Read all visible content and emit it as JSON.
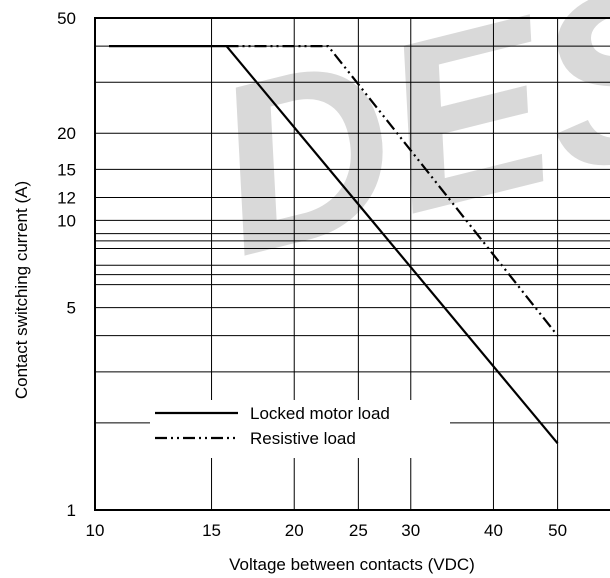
{
  "watermark": "DESI",
  "chart_data": {
    "type": "line",
    "title": "",
    "xlabel": "Voltage between contacts (VDC)",
    "ylabel": "Contact switching current (A)",
    "x_scale": "log",
    "y_scale": "log",
    "xlim": [
      10,
      60
    ],
    "ylim": [
      1,
      50
    ],
    "grid": true,
    "x_gridlines": [
      15,
      20,
      25,
      30,
      40,
      50
    ],
    "y_gridlines": [
      2,
      3,
      4,
      5,
      6,
      6.5,
      7,
      8,
      8.5,
      9,
      10,
      12,
      15,
      20,
      30,
      40
    ],
    "x_ticks": [
      {
        "value": 10,
        "label": "10"
      },
      {
        "value": 15,
        "label": "15"
      },
      {
        "value": 20,
        "label": "20"
      },
      {
        "value": 25,
        "label": "25"
      },
      {
        "value": 30,
        "label": "30"
      },
      {
        "value": 40,
        "label": "40"
      },
      {
        "value": 50,
        "label": "50"
      }
    ],
    "y_ticks": [
      {
        "value": 1,
        "label": "1"
      },
      {
        "value": 5,
        "label": "5"
      },
      {
        "value": 10,
        "label": "10"
      },
      {
        "value": 12,
        "label": "12"
      },
      {
        "value": 15,
        "label": "15"
      },
      {
        "value": 20,
        "label": "20"
      },
      {
        "value": 50,
        "label": "50"
      }
    ],
    "legend_position": "bottom-left",
    "series": [
      {
        "name": "Locked motor load",
        "style": "solid",
        "color": "#000000",
        "points": [
          [
            10.5,
            40
          ],
          [
            15.8,
            40
          ],
          [
            50,
            1.7
          ]
        ]
      },
      {
        "name": "Resistive load",
        "style": "dash-dot",
        "color": "#000000",
        "points": [
          [
            15.8,
            40
          ],
          [
            22.5,
            40
          ],
          [
            50,
            4
          ]
        ]
      }
    ]
  }
}
